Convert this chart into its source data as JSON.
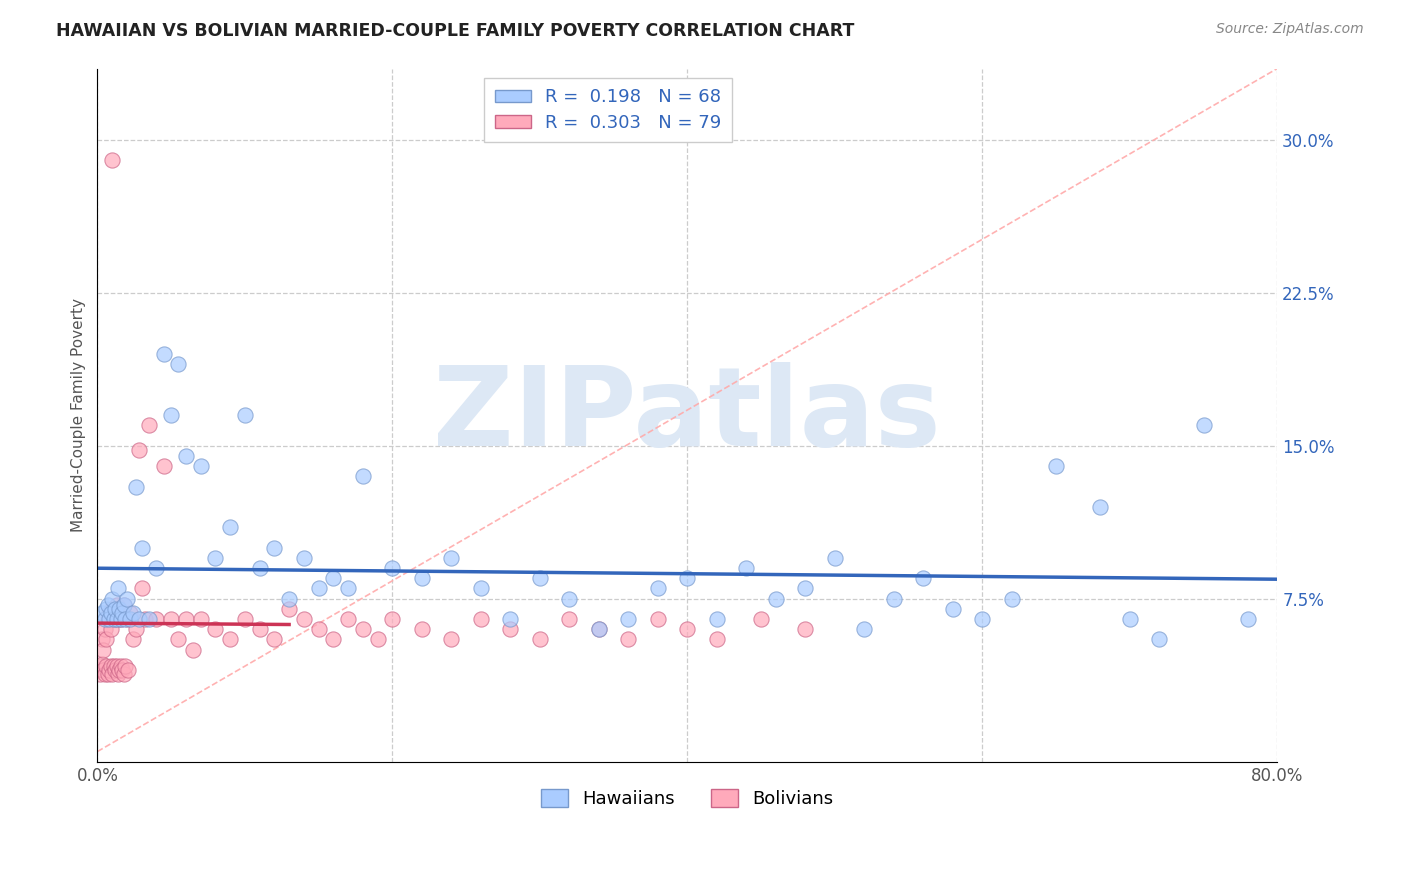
{
  "title": "HAWAIIAN VS BOLIVIAN MARRIED-COUPLE FAMILY POVERTY CORRELATION CHART",
  "source": "Source: ZipAtlas.com",
  "ylabel": "Married-Couple Family Poverty",
  "xlim": [
    0,
    0.8
  ],
  "ylim": [
    -0.005,
    0.335
  ],
  "xtick_positions": [
    0.0,
    0.2,
    0.4,
    0.6,
    0.8
  ],
  "xticklabels": [
    "0.0%",
    "",
    "",
    "",
    "80.0%"
  ],
  "ytick_right": [
    0.075,
    0.15,
    0.225,
    0.3
  ],
  "ytick_labels_right": [
    "7.5%",
    "15.0%",
    "22.5%",
    "30.0%"
  ],
  "hawaiian_R": 0.198,
  "hawaiian_N": 68,
  "bolivian_R": 0.303,
  "bolivian_N": 79,
  "hawaiian_color": "#aaccff",
  "bolivian_color": "#ffaabb",
  "hawaiian_edge": "#7799cc",
  "bolivian_edge": "#cc6688",
  "trend_hawaiian_color": "#3366bb",
  "trend_bolivian_color": "#cc3355",
  "diag_color": "#ffaaaa",
  "watermark": "ZIPatlas",
  "watermark_color": "#dde8f5",
  "hawaiian_x": [
    0.003,
    0.005,
    0.006,
    0.007,
    0.008,
    0.009,
    0.01,
    0.011,
    0.012,
    0.013,
    0.014,
    0.015,
    0.016,
    0.017,
    0.018,
    0.019,
    0.02,
    0.022,
    0.024,
    0.026,
    0.028,
    0.03,
    0.035,
    0.04,
    0.045,
    0.05,
    0.055,
    0.06,
    0.07,
    0.08,
    0.09,
    0.1,
    0.11,
    0.12,
    0.13,
    0.14,
    0.15,
    0.16,
    0.17,
    0.18,
    0.2,
    0.22,
    0.24,
    0.26,
    0.28,
    0.3,
    0.32,
    0.34,
    0.36,
    0.38,
    0.4,
    0.42,
    0.44,
    0.46,
    0.48,
    0.5,
    0.52,
    0.54,
    0.56,
    0.58,
    0.6,
    0.62,
    0.65,
    0.68,
    0.7,
    0.72,
    0.75,
    0.78
  ],
  "hawaiian_y": [
    0.068,
    0.065,
    0.07,
    0.072,
    0.065,
    0.068,
    0.075,
    0.065,
    0.07,
    0.065,
    0.08,
    0.07,
    0.065,
    0.068,
    0.072,
    0.065,
    0.075,
    0.065,
    0.068,
    0.13,
    0.065,
    0.1,
    0.065,
    0.09,
    0.195,
    0.165,
    0.19,
    0.145,
    0.14,
    0.095,
    0.11,
    0.165,
    0.09,
    0.1,
    0.075,
    0.095,
    0.08,
    0.085,
    0.08,
    0.135,
    0.09,
    0.085,
    0.095,
    0.08,
    0.065,
    0.085,
    0.075,
    0.06,
    0.065,
    0.08,
    0.085,
    0.065,
    0.09,
    0.075,
    0.08,
    0.095,
    0.06,
    0.075,
    0.085,
    0.07,
    0.065,
    0.075,
    0.14,
    0.12,
    0.065,
    0.055,
    0.16,
    0.065
  ],
  "bolivian_x": [
    0.0,
    0.001,
    0.002,
    0.003,
    0.003,
    0.004,
    0.004,
    0.005,
    0.005,
    0.006,
    0.006,
    0.007,
    0.007,
    0.008,
    0.008,
    0.009,
    0.009,
    0.01,
    0.01,
    0.011,
    0.011,
    0.012,
    0.012,
    0.013,
    0.013,
    0.014,
    0.014,
    0.015,
    0.015,
    0.016,
    0.016,
    0.017,
    0.017,
    0.018,
    0.018,
    0.019,
    0.02,
    0.021,
    0.022,
    0.024,
    0.026,
    0.028,
    0.03,
    0.032,
    0.035,
    0.04,
    0.045,
    0.05,
    0.055,
    0.06,
    0.065,
    0.07,
    0.08,
    0.09,
    0.1,
    0.11,
    0.12,
    0.13,
    0.14,
    0.15,
    0.16,
    0.17,
    0.18,
    0.19,
    0.2,
    0.22,
    0.24,
    0.26,
    0.28,
    0.3,
    0.32,
    0.34,
    0.36,
    0.38,
    0.4,
    0.42,
    0.45,
    0.48,
    0.01
  ],
  "bolivian_y": [
    0.04,
    0.042,
    0.038,
    0.043,
    0.055,
    0.04,
    0.05,
    0.038,
    0.06,
    0.042,
    0.055,
    0.038,
    0.065,
    0.04,
    0.068,
    0.042,
    0.06,
    0.038,
    0.07,
    0.042,
    0.065,
    0.04,
    0.068,
    0.042,
    0.072,
    0.038,
    0.065,
    0.04,
    0.07,
    0.042,
    0.065,
    0.04,
    0.068,
    0.038,
    0.072,
    0.042,
    0.065,
    0.04,
    0.068,
    0.055,
    0.06,
    0.148,
    0.08,
    0.065,
    0.16,
    0.065,
    0.14,
    0.065,
    0.055,
    0.065,
    0.05,
    0.065,
    0.06,
    0.055,
    0.065,
    0.06,
    0.055,
    0.07,
    0.065,
    0.06,
    0.055,
    0.065,
    0.06,
    0.055,
    0.065,
    0.06,
    0.055,
    0.065,
    0.06,
    0.055,
    0.065,
    0.06,
    0.055,
    0.065,
    0.06,
    0.055,
    0.065,
    0.06,
    0.29
  ]
}
